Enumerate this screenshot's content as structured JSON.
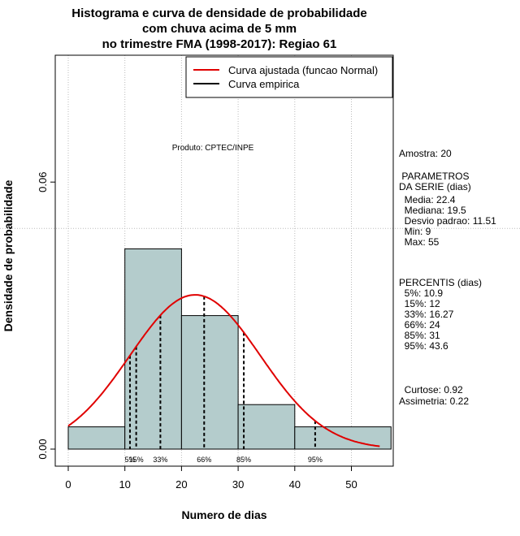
{
  "chart_data": {
    "type": "histogram",
    "title_lines": [
      "Histograma e curva de densidade de probabilidade",
      "com chuva acima de 5 mm",
      "no trimestre FMA (1998-2017): Regiao 61"
    ],
    "xlabel": "Numero de dias",
    "ylabel": "Densidade de probabilidade",
    "xlim": [
      -2,
      57
    ],
    "ylim": [
      -0.0035,
      0.088
    ],
    "x_ticks": [
      0,
      10,
      20,
      30,
      40,
      50
    ],
    "y_ticks": [
      0.0,
      0.06
    ],
    "y_tick_labels": [
      "0.00",
      "0.06"
    ],
    "grid_x": [
      0,
      10,
      20,
      30,
      40,
      50
    ],
    "grid_y": [
      0.0496
    ],
    "bins": [
      {
        "x0": 0,
        "x1": 10,
        "density": 0.005
      },
      {
        "x0": 10,
        "x1": 20,
        "density": 0.045
      },
      {
        "x0": 20,
        "x1": 30,
        "density": 0.03
      },
      {
        "x0": 30,
        "x1": 40,
        "density": 0.01
      },
      {
        "x0": 40,
        "x1": 57,
        "density": 0.005
      }
    ],
    "normal_fit": {
      "mean": 22.4,
      "sd": 11.51,
      "x_from": 0,
      "x_to": 55
    },
    "percentile_lines": [
      {
        "label": "5%",
        "x": 10.9
      },
      {
        "label": "15%",
        "x": 12
      },
      {
        "label": "33%",
        "x": 16.27
      },
      {
        "label": "66%",
        "x": 24
      },
      {
        "label": "85%",
        "x": 31
      },
      {
        "label": "95%",
        "x": 43.6
      }
    ],
    "legend": [
      {
        "label": "Curva ajustada (funcao Normal)",
        "color": "#e00000"
      },
      {
        "label": "Curva empirica",
        "color": "#000000"
      }
    ],
    "annotation": "Produto: CPTEC/INPE",
    "colors": {
      "bar_fill": "#b4cccc",
      "curve": "#e00000",
      "grid": "#bbbbbb"
    }
  },
  "side_panel": {
    "amostra": "Amostra: 20",
    "parametros_title": " PARAMETROS\nDA SERIE (dias)",
    "parametros": "  Media: 22.4\n  Mediana: 19.5\n  Desvio padrao: 11.51\n  Min: 9\n  Max: 55",
    "percentis_title": "PERCENTIS (dias)",
    "percentis": "  5%: 10.9\n  15%: 12\n  33%: 16.27\n  66%: 24\n  85%: 31\n  95%: 43.6",
    "curtose": "  Curtose: 0.92",
    "assimetria": "Assimetria: 0.22"
  }
}
